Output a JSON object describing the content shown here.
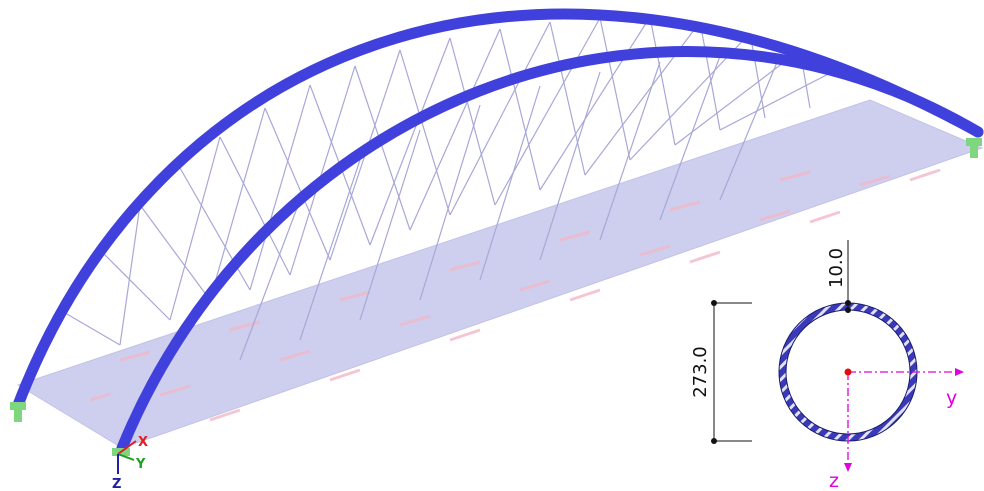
{
  "section": {
    "outer_diameter_label": "273.0",
    "wall_thickness_label": "10.0",
    "y_axis_label": "y",
    "z_axis_label": "z"
  },
  "global_axes": {
    "x_label": "X",
    "y_label": "Y",
    "z_label": "Z"
  },
  "colors": {
    "arch": "#4040dc",
    "deck": "#c6c6ec",
    "hanger": "#a8a8d8",
    "support": "#7ed67e",
    "section_fill": "#3a3ab8",
    "section_axis": "#e000e0",
    "global_x": "#e02020",
    "global_y": "#20a020",
    "global_z": "#2020a0"
  }
}
